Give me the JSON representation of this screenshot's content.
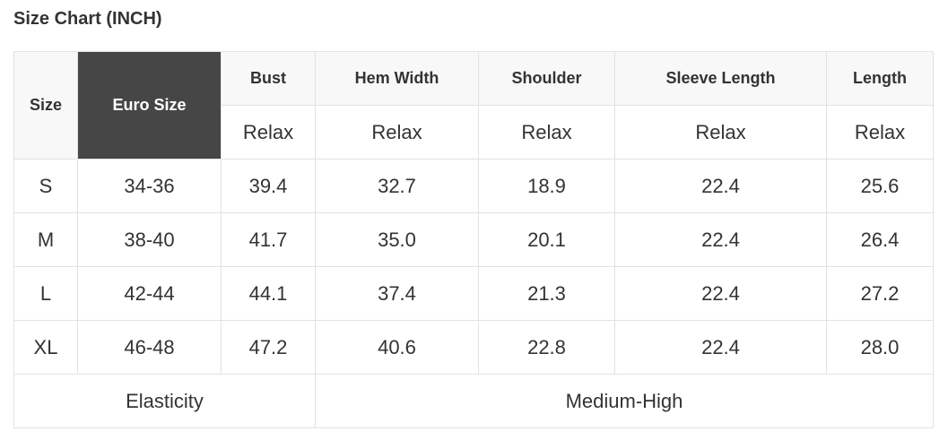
{
  "title": "Size Chart (INCH)",
  "headers": {
    "size": "Size",
    "euro": "Euro Size",
    "bust": "Bust",
    "hem": "Hem Width",
    "shoulder": "Shoulder",
    "sleeve": "Sleeve Length",
    "length": "Length"
  },
  "subheader": "Relax",
  "rows": [
    [
      "S",
      "34-36",
      "39.4",
      "32.7",
      "18.9",
      "22.4",
      "25.6"
    ],
    [
      "M",
      "38-40",
      "41.7",
      "35.0",
      "20.1",
      "22.4",
      "26.4"
    ],
    [
      "L",
      "42-44",
      "44.1",
      "37.4",
      "21.3",
      "22.4",
      "27.2"
    ],
    [
      "XL",
      "46-48",
      "47.2",
      "40.6",
      "22.8",
      "22.4",
      "28.0"
    ]
  ],
  "footer": {
    "label": "Elasticity",
    "value": "Medium-High"
  },
  "colors": {
    "header_bg": "#f8f8f8",
    "euro_bg": "#464646",
    "border": "#e2e2e2"
  }
}
